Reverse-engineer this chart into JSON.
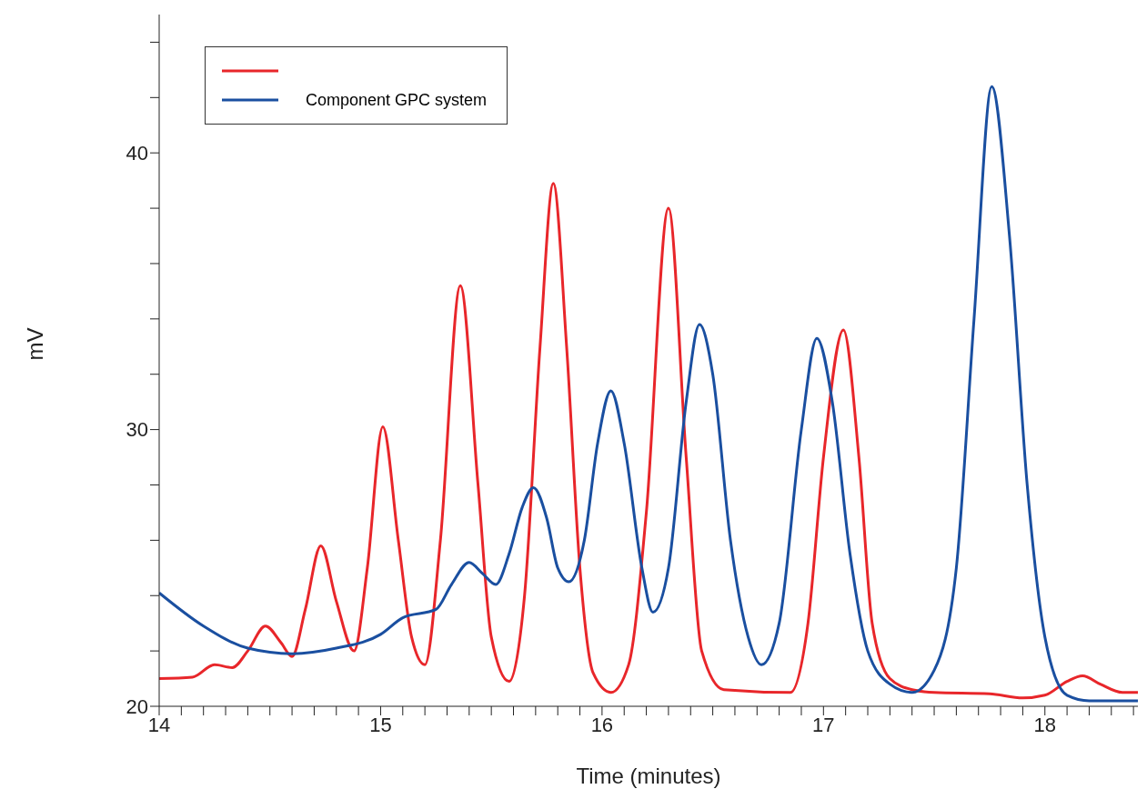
{
  "chart_data": {
    "type": "line",
    "xlabel": "Time (minutes)",
    "ylabel": "mV",
    "xlim": [
      14,
      18.42
    ],
    "ylim": [
      20,
      45
    ],
    "xticks": [
      14,
      {
        "value": 14.1,
        "label": null
      },
      {
        "value": 14.2,
        "label": null
      },
      {
        "value": 14.3,
        "label": null
      },
      {
        "value": 14.4,
        "label": null
      },
      {
        "value": 14.5,
        "label": null
      },
      {
        "value": 14.6,
        "label": null
      },
      {
        "value": 14.7,
        "label": null
      },
      {
        "value": 14.8,
        "label": null
      },
      {
        "value": 14.9,
        "label": null
      },
      15,
      {
        "value": 15.1,
        "label": null
      },
      {
        "value": 15.2,
        "label": null
      },
      {
        "value": 15.3,
        "label": null
      },
      {
        "value": 15.4,
        "label": null
      },
      {
        "value": 15.5,
        "label": null
      },
      {
        "value": 15.6,
        "label": null
      },
      {
        "value": 15.7,
        "label": null
      },
      {
        "value": 15.8,
        "label": null
      },
      {
        "value": 15.9,
        "label": null
      },
      16,
      {
        "value": 16.1,
        "label": null
      },
      {
        "value": 16.2,
        "label": null
      },
      {
        "value": 16.3,
        "label": null
      },
      {
        "value": 16.4,
        "label": null
      },
      {
        "value": 16.5,
        "label": null
      },
      {
        "value": 16.6,
        "label": null
      },
      {
        "value": 16.7,
        "label": null
      },
      {
        "value": 16.8,
        "label": null
      },
      {
        "value": 16.9,
        "label": null
      },
      17,
      {
        "value": 17.1,
        "label": null
      },
      {
        "value": 17.2,
        "label": null
      },
      {
        "value": 17.3,
        "label": null
      },
      {
        "value": 17.4,
        "label": null
      },
      {
        "value": 17.5,
        "label": null
      },
      {
        "value": 17.6,
        "label": null
      },
      {
        "value": 17.7,
        "label": null
      },
      {
        "value": 17.8,
        "label": null
      },
      {
        "value": 17.9,
        "label": null
      },
      18,
      {
        "value": 18.1,
        "label": null
      },
      {
        "value": 18.2,
        "label": null
      },
      {
        "value": 18.3,
        "label": null
      },
      {
        "value": 18.4,
        "label": null
      }
    ],
    "yticks": [
      20,
      {
        "value": 22,
        "label": null
      },
      {
        "value": 24,
        "label": null
      },
      {
        "value": 26,
        "label": null
      },
      {
        "value": 28,
        "label": null
      },
      30,
      {
        "value": 32,
        "label": null
      },
      {
        "value": 34,
        "label": null
      },
      {
        "value": 36,
        "label": null
      },
      {
        "value": 38,
        "label": null
      },
      40,
      {
        "value": 42,
        "label": null
      },
      {
        "value": 44,
        "label": null
      }
    ],
    "grid": false,
    "legend": "top left",
    "marker": "none",
    "line_style": "solid",
    "series": [
      {
        "color": "#e8262a",
        "x": [
          14.0,
          14.15,
          14.25,
          14.33,
          14.4,
          14.48,
          14.55,
          14.6,
          14.66,
          14.73,
          14.8,
          14.88,
          14.94,
          15.01,
          15.08,
          15.14,
          15.2,
          15.27,
          15.36,
          15.44,
          15.5,
          15.58,
          15.65,
          15.72,
          15.78,
          15.84,
          15.9,
          15.96,
          16.04,
          16.12,
          16.2,
          16.3,
          16.38,
          16.45,
          16.55,
          16.85,
          16.93,
          17.0,
          17.09,
          17.16,
          17.22,
          17.3,
          17.4,
          17.5,
          17.75,
          17.9,
          18.0,
          18.1,
          18.17,
          18.25,
          18.35,
          18.42
        ],
        "values": [
          21.0,
          21.05,
          21.5,
          21.4,
          22.0,
          22.9,
          22.3,
          21.8,
          23.5,
          25.8,
          23.8,
          22.0,
          25,
          30.1,
          26,
          22.5,
          21.5,
          26,
          35.2,
          28,
          22.5,
          20.9,
          24,
          33,
          38.9,
          33,
          25,
          21.2,
          20.5,
          21.5,
          27,
          38.0,
          29,
          22.0,
          20.6,
          20.5,
          23,
          29,
          33.6,
          29,
          23,
          21.0,
          20.6,
          20.5,
          20.45,
          20.3,
          20.4,
          20.9,
          21.1,
          20.8,
          20.5,
          20.5
        ]
      },
      {
        "name": "Component GPC system",
        "color": "#1a4fa0",
        "x": [
          14.0,
          14.2,
          14.4,
          14.6,
          14.8,
          15.0,
          15.1,
          15.25,
          15.32,
          15.4,
          15.46,
          15.52,
          15.58,
          15.64,
          15.69,
          15.75,
          15.8,
          15.85,
          15.92,
          15.98,
          16.04,
          16.1,
          16.18,
          16.23,
          16.3,
          16.38,
          16.44,
          16.5,
          16.58,
          16.66,
          16.72,
          16.8,
          16.9,
          16.97,
          17.04,
          17.12,
          17.2,
          17.3,
          17.4,
          17.5,
          17.6,
          17.68,
          17.76,
          17.84,
          17.92,
          18.0,
          18.1,
          18.2,
          18.42
        ],
        "values": [
          24.1,
          22.9,
          22.1,
          21.9,
          22.1,
          22.6,
          23.2,
          23.5,
          24.4,
          25.2,
          24.8,
          24.4,
          25.5,
          27.2,
          27.9,
          26.8,
          25.0,
          24.5,
          26,
          29.5,
          31.4,
          29.5,
          25,
          23.4,
          25,
          31,
          33.8,
          32,
          26,
          22.5,
          21.5,
          23,
          30,
          33.3,
          31,
          25.5,
          22.0,
          20.8,
          20.5,
          21.3,
          25,
          34,
          42.4,
          37,
          28,
          22.5,
          20.4,
          20.2,
          20.2
        ]
      }
    ]
  }
}
